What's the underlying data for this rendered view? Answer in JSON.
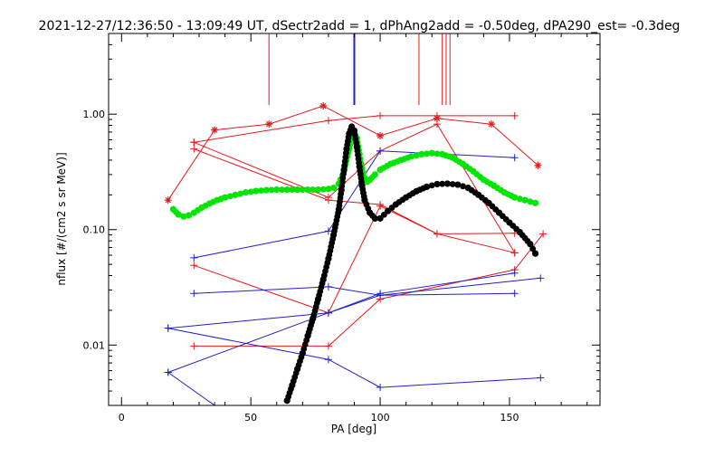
{
  "chart_data": {
    "type": "scatter",
    "title": "2021-12-27/12:36:50 - 13:09:49 UT, dSectr2add = 1, dPhAng2add = -0.50deg, dPA290_est=  -0.3deg",
    "xlabel": "PA [deg]",
    "ylabel": "nflux [#/(cm2 s sr MeV)]",
    "xlim": [
      -5,
      185
    ],
    "ylim": [
      0.003,
      5
    ],
    "y_scale": "log",
    "grid": false,
    "x_ticks": [
      0,
      50,
      100,
      150
    ],
    "x_tick_labels": [
      "0",
      "50",
      "100",
      "150"
    ],
    "y_ticks": [
      0.01,
      0.1,
      1.0
    ],
    "y_tick_labels": [
      "0.01",
      "0.10",
      "1.00"
    ],
    "colors": {
      "red": "#e41a1c",
      "blue": "#2020c8",
      "green": "#00e600",
      "black": "#000000"
    },
    "series": [
      {
        "color": "red",
        "marker": "asterisk",
        "line": true,
        "x": [
          18,
          36,
          57,
          78,
          100,
          122,
          143,
          161
        ],
        "y": [
          0.18,
          0.73,
          0.82,
          1.18,
          0.65,
          0.92,
          0.82,
          0.36
        ]
      },
      {
        "color": "red",
        "marker": "plus",
        "line": true,
        "x": [
          28,
          80,
          100,
          122,
          152
        ],
        "y": [
          0.57,
          0.19,
          0.48,
          0.82,
          0.063
        ]
      },
      {
        "color": "red",
        "marker": "plus",
        "line": true,
        "x": [
          28,
          80,
          100,
          122,
          152
        ],
        "y": [
          0.049,
          0.019,
          0.16,
          0.092,
          0.063
        ]
      },
      {
        "color": "red",
        "marker": "plus",
        "line": true,
        "x": [
          28,
          80,
          100,
          122,
          152
        ],
        "y": [
          0.5,
          0.18,
          0.165,
          0.092,
          0.093
        ]
      },
      {
        "color": "red",
        "marker": "plus",
        "line": true,
        "x": [
          28,
          80,
          100,
          152,
          163
        ],
        "y": [
          0.0098,
          0.0098,
          0.025,
          0.045,
          0.092
        ]
      },
      {
        "color": "red",
        "marker": "plus",
        "line": true,
        "x": [
          28,
          80,
          100,
          122,
          152
        ],
        "y": [
          0.57,
          0.88,
          0.97,
          0.97,
          0.97
        ]
      },
      {
        "color": "blue",
        "marker": "plus",
        "line": true,
        "x": [
          28,
          80,
          100,
          152
        ],
        "y": [
          0.057,
          0.097,
          0.48,
          0.42
        ]
      },
      {
        "color": "blue",
        "marker": "plus",
        "line": true,
        "x": [
          28,
          80,
          100,
          152
        ],
        "y": [
          0.028,
          0.032,
          0.027,
          0.028
        ]
      },
      {
        "color": "blue",
        "marker": "plus",
        "line": true,
        "x": [
          18,
          80,
          100,
          162
        ],
        "y": [
          0.014,
          0.019,
          0.027,
          0.038
        ]
      },
      {
        "color": "blue",
        "marker": "plus",
        "line": true,
        "x": [
          18,
          80,
          100,
          152
        ],
        "y": [
          0.0058,
          0.019,
          0.028,
          0.042
        ]
      },
      {
        "color": "blue",
        "marker": "plus",
        "line": true,
        "x": [
          18,
          80,
          100,
          162
        ],
        "y": [
          0.014,
          0.0075,
          0.0043,
          0.0052
        ]
      },
      {
        "color": "blue",
        "marker": "plus",
        "line": true,
        "x": [
          18,
          36
        ],
        "y": [
          0.0058,
          0.003
        ]
      },
      {
        "color": "green",
        "marker": "dot",
        "line": false,
        "x": [
          20,
          22,
          24,
          26,
          28,
          31,
          34,
          37,
          40,
          44,
          48,
          52,
          56,
          60,
          64,
          68,
          72,
          76,
          80,
          82,
          84,
          86,
          88,
          89,
          90,
          91,
          92,
          93,
          94,
          95,
          96,
          98,
          100,
          104,
          108,
          112,
          116,
          120,
          124,
          128,
          132,
          136,
          140,
          144,
          148,
          152,
          156,
          160
        ],
        "y": [
          0.15,
          0.135,
          0.13,
          0.133,
          0.14,
          0.155,
          0.168,
          0.18,
          0.19,
          0.2,
          0.21,
          0.216,
          0.22,
          0.222,
          0.222,
          0.222,
          0.222,
          0.222,
          0.225,
          0.23,
          0.25,
          0.32,
          0.5,
          0.65,
          0.7,
          0.62,
          0.45,
          0.34,
          0.28,
          0.26,
          0.27,
          0.3,
          0.33,
          0.37,
          0.4,
          0.43,
          0.45,
          0.46,
          0.45,
          0.42,
          0.37,
          0.32,
          0.27,
          0.24,
          0.21,
          0.19,
          0.18,
          0.17
        ]
      },
      {
        "color": "black",
        "marker": "dot",
        "line": false,
        "x": [
          64,
          66,
          68,
          70,
          72,
          74,
          76,
          78,
          80,
          82,
          84,
          85,
          86,
          87,
          88,
          89,
          90,
          91,
          92,
          93,
          94,
          96,
          98,
          100,
          103,
          106,
          110,
          114,
          118,
          122,
          126,
          130,
          134,
          138,
          142,
          146,
          150,
          154,
          158,
          160
        ],
        "y": [
          0.0033,
          0.0045,
          0.0062,
          0.0085,
          0.012,
          0.017,
          0.025,
          0.037,
          0.056,
          0.09,
          0.15,
          0.22,
          0.33,
          0.5,
          0.68,
          0.78,
          0.72,
          0.52,
          0.35,
          0.24,
          0.18,
          0.14,
          0.125,
          0.125,
          0.145,
          0.165,
          0.19,
          0.215,
          0.235,
          0.248,
          0.25,
          0.245,
          0.23,
          0.2,
          0.17,
          0.14,
          0.115,
          0.095,
          0.075,
          0.062
        ]
      }
    ],
    "reference_lines": [
      {
        "x": 57,
        "color": "red",
        "y_from": 1.2,
        "y_to": 5
      },
      {
        "x": 90,
        "color": "blue",
        "y_from": 1.2,
        "y_to": 5
      },
      {
        "x": 115,
        "color": "red",
        "y_from": 1.2,
        "y_to": 5
      },
      {
        "x": 124,
        "color": "red",
        "y_from": 1.2,
        "y_to": 5
      },
      {
        "x": 125.5,
        "color": "red",
        "y_from": 1.2,
        "y_to": 5
      },
      {
        "x": 127,
        "color": "red",
        "y_from": 1.2,
        "y_to": 5
      }
    ]
  }
}
